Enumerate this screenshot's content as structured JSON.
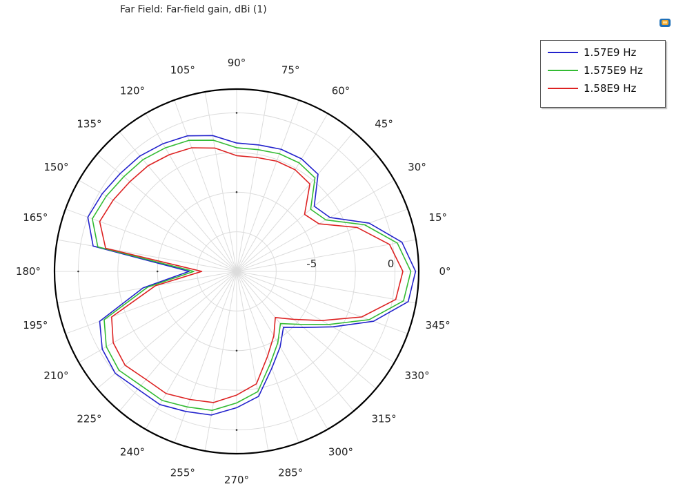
{
  "chart_data": {
    "type": "line",
    "projection": "polar",
    "title": "Far Field: Far-field gain, dBi (1)",
    "angle_ticks_deg": [
      0,
      15,
      30,
      45,
      60,
      75,
      90,
      105,
      120,
      135,
      150,
      165,
      180,
      195,
      210,
      225,
      240,
      255,
      270,
      285,
      300,
      315,
      330,
      345
    ],
    "angle_tick_labels": [
      "0°",
      "15°",
      "30°",
      "45°",
      "60°",
      "75°",
      "90°",
      "105°",
      "120°",
      "135°",
      "150°",
      "165°",
      "180°",
      "195°",
      "210°",
      "225°",
      "240°",
      "255°",
      "270°",
      "285°",
      "300°",
      "315°",
      "330°",
      "345°"
    ],
    "radial_ticks": [
      -5,
      0
    ],
    "radial_tick_labels": [
      "-5",
      "0"
    ],
    "radial_range": [
      -10,
      1.5
    ],
    "grid": true,
    "legend": {
      "placement": "top-right"
    },
    "theta_deg": [
      0,
      10,
      20,
      30,
      40,
      50,
      60,
      70,
      80,
      90,
      100,
      110,
      120,
      130,
      140,
      150,
      160,
      170,
      180,
      190,
      200,
      210,
      220,
      230,
      240,
      250,
      260,
      270,
      280,
      290,
      300,
      310,
      320,
      330,
      340,
      350
    ],
    "series": [
      {
        "name": "1.57E9 Hz",
        "color": "#2222cc",
        "values": [
          1.3,
          0.6,
          -1.1,
          -3.2,
          -3.6,
          -2.0,
          -1.8,
          -1.8,
          -1.9,
          -1.9,
          -1.3,
          -0.9,
          -0.7,
          -0.5,
          -0.4,
          -0.2,
          0.0,
          -0.8,
          -7.0,
          -4.0,
          -0.8,
          -0.2,
          0.0,
          -0.3,
          -0.3,
          -0.6,
          -0.8,
          -1.4,
          -2.0,
          -3.5,
          -4.5,
          -5.4,
          -4.5,
          -3.0,
          -0.8,
          1.0
        ]
      },
      {
        "name": "1.575E9 Hz",
        "color": "#33bb33",
        "values": [
          1.0,
          0.3,
          -1.4,
          -3.5,
          -3.9,
          -2.3,
          -2.1,
          -2.1,
          -2.2,
          -2.2,
          -1.6,
          -1.2,
          -1.0,
          -0.8,
          -0.7,
          -0.5,
          -0.3,
          -1.1,
          -7.3,
          -4.3,
          -1.1,
          -0.5,
          -0.3,
          -0.6,
          -0.6,
          -0.9,
          -1.1,
          -1.7,
          -2.3,
          -3.8,
          -4.8,
          -5.7,
          -4.8,
          -3.3,
          -1.1,
          0.7
        ]
      },
      {
        "name": "1.58E9 Hz",
        "color": "#dd2222",
        "values": [
          0.5,
          -0.2,
          -1.9,
          -4.0,
          -4.4,
          -2.8,
          -2.6,
          -2.6,
          -2.7,
          -2.7,
          -2.1,
          -1.7,
          -1.5,
          -1.3,
          -1.2,
          -1.0,
          -0.8,
          -1.6,
          -7.8,
          -4.8,
          -1.6,
          -1.0,
          -0.8,
          -1.1,
          -1.1,
          -1.4,
          -1.6,
          -2.2,
          -2.8,
          -4.3,
          -5.3,
          -6.2,
          -5.3,
          -3.8,
          -1.6,
          0.2
        ]
      }
    ]
  }
}
